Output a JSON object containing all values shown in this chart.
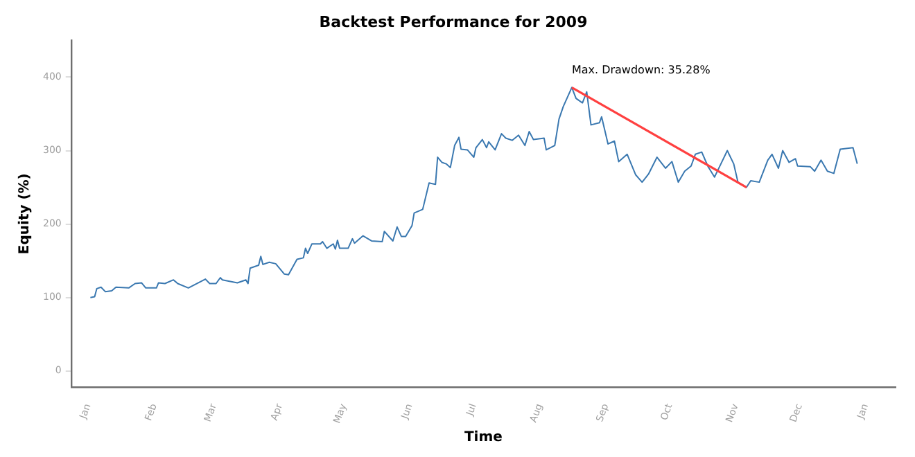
{
  "chart_data": {
    "type": "line",
    "title": "Backtest Performance for 2009",
    "xlabel": "Time",
    "ylabel": "Equity (%)",
    "xlim": [
      "2008-12-24",
      "2010-01-15"
    ],
    "ylim": [
      -22,
      450
    ],
    "xticks": [
      {
        "value": "2009-01-01",
        "label": "Jan"
      },
      {
        "value": "2009-02-01",
        "label": "Feb"
      },
      {
        "value": "2009-03-01",
        "label": "Mar"
      },
      {
        "value": "2009-04-01",
        "label": "Apr"
      },
      {
        "value": "2009-05-01",
        "label": "May"
      },
      {
        "value": "2009-06-01",
        "label": "Jun"
      },
      {
        "value": "2009-07-01",
        "label": "Jul"
      },
      {
        "value": "2009-08-01",
        "label": "Aug"
      },
      {
        "value": "2009-09-01",
        "label": "Sep"
      },
      {
        "value": "2009-10-01",
        "label": "Oct"
      },
      {
        "value": "2009-11-01",
        "label": "Nov"
      },
      {
        "value": "2009-12-01",
        "label": "Dec"
      },
      {
        "value": "2010-01-01",
        "label": "Jan"
      }
    ],
    "yticks": [
      0,
      100,
      200,
      300,
      400
    ],
    "grid": false,
    "legend": false,
    "marker": "none",
    "line_style": "solid",
    "annotations": [
      "Max. Drawdown: 35.28%"
    ],
    "series": [
      {
        "color": "#3a78b0",
        "x": [
          "2009-01-02",
          "2009-01-04",
          "2009-01-05",
          "2009-01-07",
          "2009-01-09",
          "2009-01-12",
          "2009-01-14",
          "2009-01-20",
          "2009-01-23",
          "2009-01-26",
          "2009-01-28",
          "2009-02-02",
          "2009-02-03",
          "2009-02-06",
          "2009-02-10",
          "2009-02-12",
          "2009-02-17",
          "2009-02-25",
          "2009-02-27",
          "2009-03-02",
          "2009-03-04",
          "2009-03-05",
          "2009-03-12",
          "2009-03-16",
          "2009-03-17",
          "2009-03-18",
          "2009-03-22",
          "2009-03-23",
          "2009-03-24",
          "2009-03-27",
          "2009-03-30",
          "2009-04-03",
          "2009-04-05",
          "2009-04-09",
          "2009-04-12",
          "2009-04-13",
          "2009-04-14",
          "2009-04-16",
          "2009-04-20",
          "2009-04-21",
          "2009-04-23",
          "2009-04-26",
          "2009-04-27",
          "2009-04-28",
          "2009-04-29",
          "2009-05-03",
          "2009-05-05",
          "2009-05-06",
          "2009-05-10",
          "2009-05-14",
          "2009-05-19",
          "2009-05-20",
          "2009-05-24",
          "2009-05-26",
          "2009-05-28",
          "2009-05-30",
          "2009-06-02",
          "2009-06-03",
          "2009-06-07",
          "2009-06-10",
          "2009-06-13",
          "2009-06-14",
          "2009-06-16",
          "2009-06-18",
          "2009-06-20",
          "2009-06-22",
          "2009-06-24",
          "2009-06-25",
          "2009-06-28",
          "2009-07-01",
          "2009-07-02",
          "2009-07-05",
          "2009-07-07",
          "2009-07-08",
          "2009-07-11",
          "2009-07-14",
          "2009-07-16",
          "2009-07-19",
          "2009-07-22",
          "2009-07-25",
          "2009-07-27",
          "2009-07-29",
          "2009-08-03",
          "2009-08-04",
          "2009-08-08",
          "2009-08-10",
          "2009-08-12",
          "2009-08-16",
          "2009-08-18",
          "2009-08-21",
          "2009-08-23",
          "2009-08-25",
          "2009-08-29",
          "2009-08-30",
          "2009-09-02",
          "2009-09-05",
          "2009-09-07",
          "2009-09-11",
          "2009-09-15",
          "2009-09-18",
          "2009-09-21",
          "2009-09-25",
          "2009-09-29",
          "2009-10-02",
          "2009-10-05",
          "2009-10-08",
          "2009-10-11",
          "2009-10-13",
          "2009-10-16",
          "2009-10-19",
          "2009-10-22",
          "2009-10-25",
          "2009-10-28",
          "2009-10-31",
          "2009-11-02",
          "2009-11-06",
          "2009-11-08",
          "2009-11-12",
          "2009-11-16",
          "2009-11-18",
          "2009-11-21",
          "2009-11-23",
          "2009-11-26",
          "2009-11-29",
          "2009-11-30",
          "2009-12-06",
          "2009-12-08",
          "2009-12-11",
          "2009-12-14",
          "2009-12-17",
          "2009-12-20",
          "2009-12-26",
          "2009-12-28"
        ],
        "values": [
          100,
          101,
          112,
          114,
          108,
          109,
          114,
          113,
          119,
          120,
          113,
          113,
          120,
          119,
          124,
          119,
          113,
          125,
          119,
          119,
          127,
          124,
          120,
          124,
          119,
          140,
          144,
          156,
          145,
          148,
          146,
          132,
          131,
          152,
          154,
          167,
          160,
          173,
          173,
          176,
          167,
          173,
          166,
          178,
          167,
          167,
          180,
          174,
          184,
          177,
          176,
          190,
          177,
          196,
          183,
          183,
          198,
          215,
          220,
          256,
          254,
          291,
          284,
          282,
          277,
          307,
          318,
          302,
          301,
          291,
          304,
          315,
          304,
          312,
          301,
          323,
          317,
          314,
          321,
          307,
          326,
          315,
          317,
          301,
          307,
          343,
          360,
          386,
          371,
          365,
          380,
          335,
          338,
          346,
          309,
          313,
          285,
          295,
          267,
          257,
          268,
          291,
          276,
          285,
          257,
          272,
          279,
          295,
          298,
          278,
          264,
          282,
          300,
          282,
          257,
          250,
          259,
          257,
          287,
          295,
          276,
          300,
          284,
          289,
          279,
          278,
          272,
          287,
          272,
          269,
          302,
          304,
          282
        ]
      },
      {
        "color": "#ff4040",
        "x": [
          "2009-08-16",
          "2009-11-06"
        ],
        "values": [
          386,
          250
        ]
      }
    ]
  }
}
